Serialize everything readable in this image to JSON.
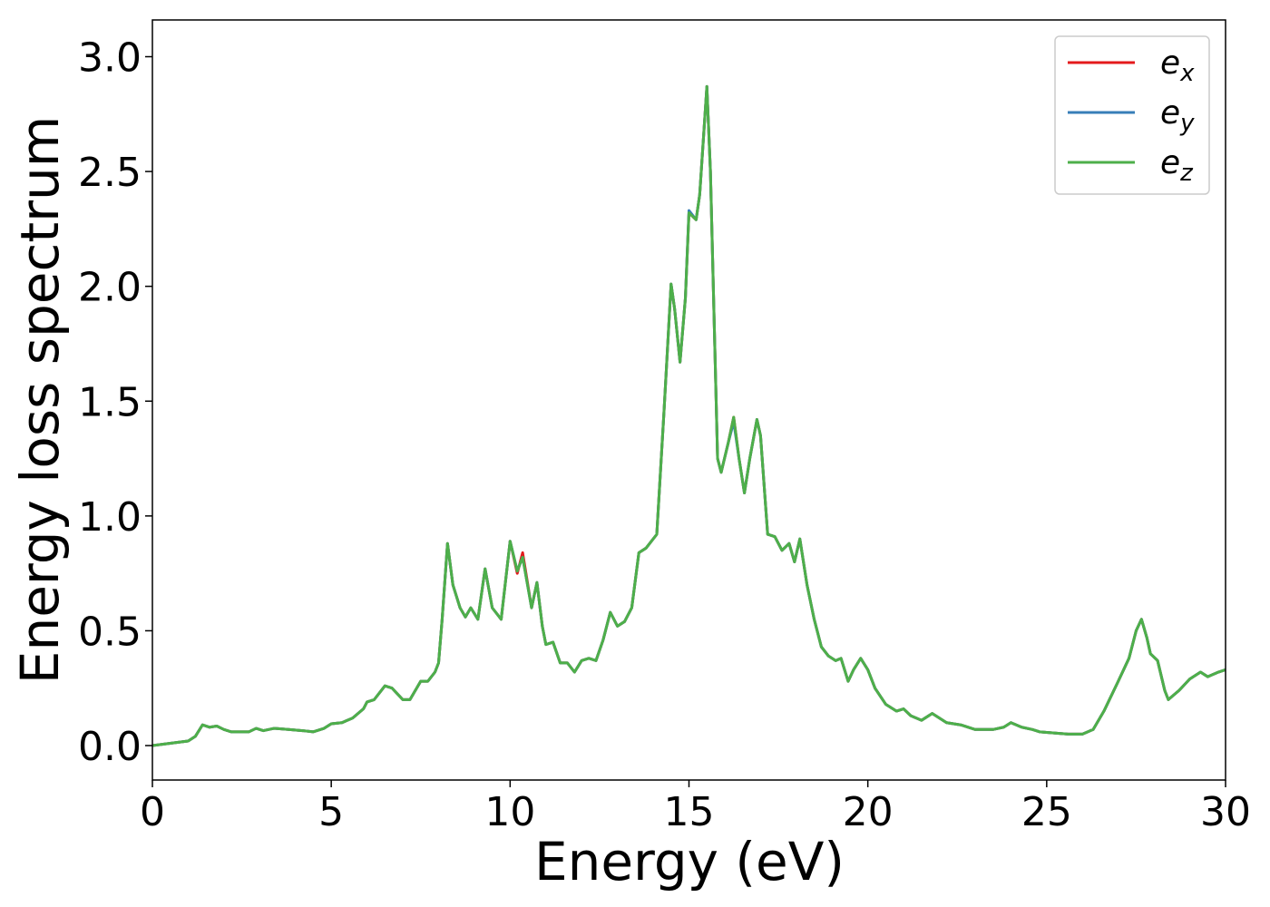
{
  "chart_data": {
    "type": "line",
    "xlabel": "Energy (eV)",
    "ylabel": "Energy loss spectrum",
    "xlim": [
      0,
      30
    ],
    "ylim": [
      -0.15,
      3.16
    ],
    "xticks": [
      0,
      5,
      10,
      15,
      20,
      25,
      30
    ],
    "yticks": [
      {
        "value": 0,
        "label": "0.0"
      },
      0.5,
      {
        "value": 1,
        "label": "1.0"
      },
      1.5,
      {
        "value": 2,
        "label": "2.0"
      },
      2.5,
      {
        "value": 3,
        "label": "3.0"
      }
    ],
    "legend": "upper right",
    "grid": false,
    "x": [
      0,
      0.5,
      1,
      1.2,
      1.4,
      1.6,
      1.8,
      2,
      2.2,
      2.5,
      2.7,
      2.9,
      3.1,
      3.4,
      3.8,
      4.2,
      4.5,
      4.8,
      5,
      5.3,
      5.6,
      5.9,
      6,
      6.2,
      6.5,
      6.7,
      7,
      7.2,
      7.5,
      7.7,
      7.9,
      8,
      8.1,
      8.25,
      8.4,
      8.6,
      8.75,
      8.9,
      9.1,
      9.3,
      9.5,
      9.75,
      10,
      10.2,
      10.35,
      10.6,
      10.75,
      10.9,
      11,
      11.2,
      11.4,
      11.6,
      11.8,
      12,
      12.2,
      12.4,
      12.6,
      12.8,
      13,
      13.2,
      13.4,
      13.6,
      13.8,
      14.1,
      14.3,
      14.5,
      14.6,
      14.75,
      14.9,
      15,
      15.2,
      15.3,
      15.5,
      15.6,
      15.8,
      15.9,
      16.1,
      16.25,
      16.4,
      16.55,
      16.7,
      16.9,
      17,
      17.2,
      17.4,
      17.6,
      17.8,
      17.95,
      18.1,
      18.3,
      18.5,
      18.7,
      18.9,
      19.1,
      19.25,
      19.45,
      19.6,
      19.8,
      20,
      20.2,
      20.5,
      20.8,
      21,
      21.2,
      21.5,
      21.8,
      22.2,
      22.6,
      23,
      23.5,
      23.8,
      24,
      24.3,
      24.6,
      24.8,
      25.2,
      25.6,
      26,
      26.3,
      26.6,
      27,
      27.3,
      27.5,
      27.65,
      27.8,
      27.9,
      28.1,
      28.3,
      28.4,
      28.7,
      29,
      29.3,
      29.5,
      29.8,
      30
    ],
    "series": [
      {
        "name": "ex",
        "color": "#e41a1c",
        "values": [
          0,
          0.01,
          0.02,
          0.04,
          0.09,
          0.08,
          0.085,
          0.07,
          0.06,
          0.06,
          0.06,
          0.075,
          0.065,
          0.075,
          0.07,
          0.065,
          0.06,
          0.075,
          0.095,
          0.1,
          0.12,
          0.16,
          0.19,
          0.2,
          0.26,
          0.25,
          0.2,
          0.2,
          0.28,
          0.28,
          0.32,
          0.36,
          0.55,
          0.88,
          0.7,
          0.6,
          0.56,
          0.6,
          0.55,
          0.77,
          0.6,
          0.55,
          0.89,
          0.75,
          0.84,
          0.6,
          0.71,
          0.52,
          0.44,
          0.45,
          0.36,
          0.36,
          0.32,
          0.37,
          0.38,
          0.37,
          0.46,
          0.58,
          0.52,
          0.54,
          0.6,
          0.84,
          0.86,
          0.92,
          1.45,
          2.01,
          1.9,
          1.67,
          1.95,
          2.32,
          2.29,
          2.4,
          2.87,
          2.5,
          1.25,
          1.19,
          1.32,
          1.43,
          1.25,
          1.1,
          1.25,
          1.42,
          1.35,
          0.92,
          0.91,
          0.85,
          0.88,
          0.8,
          0.9,
          0.7,
          0.55,
          0.43,
          0.39,
          0.37,
          0.38,
          0.28,
          0.33,
          0.38,
          0.33,
          0.25,
          0.18,
          0.15,
          0.16,
          0.13,
          0.11,
          0.14,
          0.1,
          0.09,
          0.07,
          0.07,
          0.08,
          0.1,
          0.08,
          0.07,
          0.06,
          0.055,
          0.05,
          0.05,
          0.07,
          0.15,
          0.28,
          0.38,
          0.5,
          0.55,
          0.47,
          0.4,
          0.37,
          0.24,
          0.2,
          0.24,
          0.29,
          0.32,
          0.3,
          0.32,
          0.33
        ]
      },
      {
        "name": "ey",
        "color": "#377eb8",
        "values": [
          0,
          0.01,
          0.02,
          0.04,
          0.09,
          0.08,
          0.085,
          0.07,
          0.06,
          0.06,
          0.06,
          0.075,
          0.065,
          0.075,
          0.07,
          0.065,
          0.06,
          0.075,
          0.095,
          0.1,
          0.12,
          0.16,
          0.19,
          0.2,
          0.26,
          0.25,
          0.2,
          0.2,
          0.28,
          0.28,
          0.32,
          0.36,
          0.55,
          0.88,
          0.7,
          0.6,
          0.56,
          0.6,
          0.55,
          0.77,
          0.6,
          0.55,
          0.89,
          0.76,
          0.82,
          0.6,
          0.71,
          0.52,
          0.44,
          0.45,
          0.36,
          0.36,
          0.32,
          0.37,
          0.38,
          0.37,
          0.46,
          0.58,
          0.52,
          0.54,
          0.6,
          0.84,
          0.86,
          0.92,
          1.45,
          2.01,
          1.9,
          1.67,
          1.95,
          2.33,
          2.29,
          2.4,
          2.87,
          2.5,
          1.25,
          1.19,
          1.32,
          1.41,
          1.25,
          1.1,
          1.25,
          1.42,
          1.35,
          0.92,
          0.91,
          0.85,
          0.88,
          0.8,
          0.9,
          0.7,
          0.55,
          0.43,
          0.39,
          0.37,
          0.38,
          0.28,
          0.33,
          0.38,
          0.33,
          0.25,
          0.18,
          0.15,
          0.16,
          0.13,
          0.11,
          0.14,
          0.1,
          0.09,
          0.07,
          0.07,
          0.08,
          0.1,
          0.08,
          0.07,
          0.06,
          0.055,
          0.05,
          0.05,
          0.07,
          0.15,
          0.28,
          0.38,
          0.5,
          0.55,
          0.47,
          0.4,
          0.37,
          0.24,
          0.2,
          0.24,
          0.29,
          0.32,
          0.3,
          0.32,
          0.33
        ]
      },
      {
        "name": "ez",
        "color": "#4daf4a",
        "values": [
          0,
          0.01,
          0.02,
          0.04,
          0.09,
          0.08,
          0.085,
          0.07,
          0.06,
          0.06,
          0.06,
          0.075,
          0.065,
          0.075,
          0.07,
          0.065,
          0.06,
          0.075,
          0.095,
          0.1,
          0.12,
          0.16,
          0.19,
          0.2,
          0.26,
          0.25,
          0.2,
          0.2,
          0.28,
          0.28,
          0.32,
          0.36,
          0.55,
          0.88,
          0.7,
          0.6,
          0.56,
          0.6,
          0.55,
          0.77,
          0.6,
          0.55,
          0.89,
          0.76,
          0.82,
          0.6,
          0.71,
          0.52,
          0.44,
          0.45,
          0.36,
          0.36,
          0.32,
          0.37,
          0.38,
          0.37,
          0.46,
          0.58,
          0.52,
          0.54,
          0.6,
          0.84,
          0.86,
          0.92,
          1.45,
          2.01,
          1.9,
          1.67,
          1.95,
          2.32,
          2.29,
          2.4,
          2.87,
          2.5,
          1.25,
          1.19,
          1.32,
          1.43,
          1.25,
          1.1,
          1.25,
          1.42,
          1.35,
          0.92,
          0.91,
          0.85,
          0.88,
          0.8,
          0.9,
          0.7,
          0.55,
          0.43,
          0.39,
          0.37,
          0.38,
          0.28,
          0.33,
          0.38,
          0.33,
          0.25,
          0.18,
          0.15,
          0.16,
          0.13,
          0.11,
          0.14,
          0.1,
          0.09,
          0.07,
          0.07,
          0.08,
          0.1,
          0.08,
          0.07,
          0.06,
          0.055,
          0.05,
          0.05,
          0.07,
          0.15,
          0.28,
          0.38,
          0.5,
          0.55,
          0.47,
          0.4,
          0.37,
          0.24,
          0.2,
          0.24,
          0.29,
          0.32,
          0.3,
          0.32,
          0.33
        ]
      }
    ]
  }
}
